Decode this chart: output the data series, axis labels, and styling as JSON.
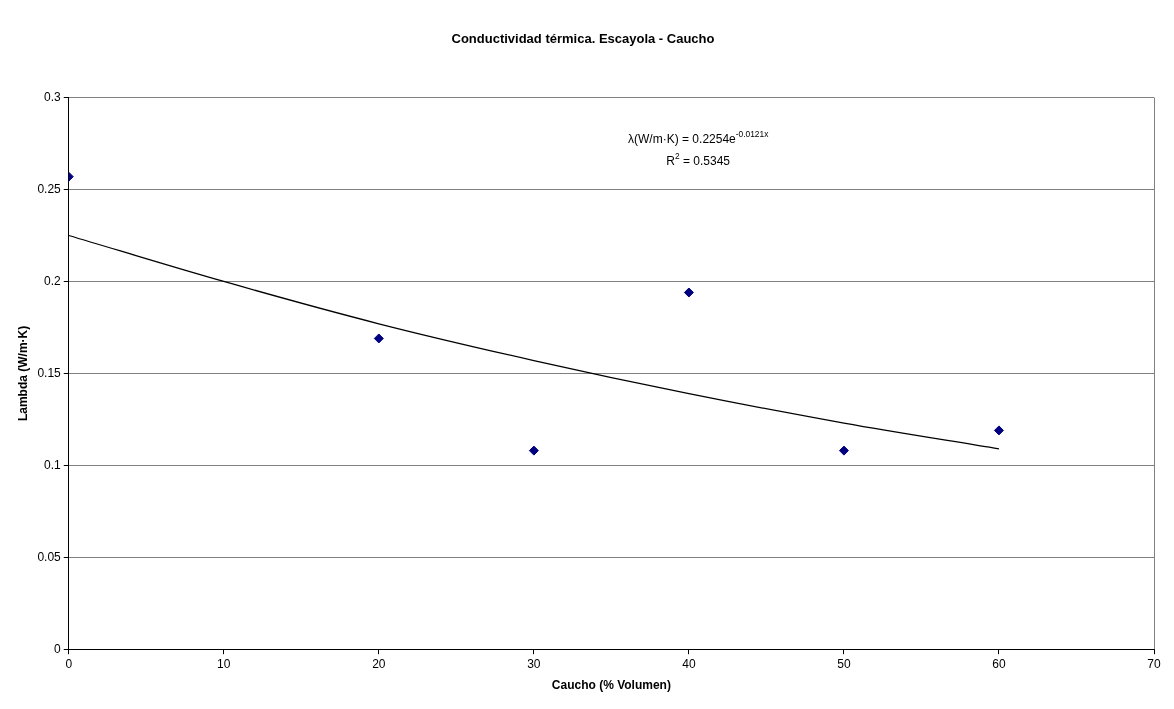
{
  "chart_data": {
    "type": "scatter",
    "title": "Conductividad térmica. Escayola - Caucho",
    "xlabel": "Caucho (% Volumen)",
    "ylabel": "Lambda (W/m·K)",
    "xlim": [
      0,
      70
    ],
    "xticks": [
      0,
      10,
      20,
      30,
      40,
      50,
      60,
      70
    ],
    "ylim": [
      0,
      0.3
    ],
    "yticks": [
      0,
      0.05,
      0.1,
      0.15,
      0.2,
      0.25,
      0.3
    ],
    "grid": "y",
    "legend": false,
    "marker": "diamond",
    "series": [
      {
        "type": "scatter",
        "color": "#000080",
        "x": [
          0,
          20,
          30,
          40,
          50,
          60
        ],
        "values": [
          0.257,
          0.169,
          0.108,
          0.194,
          0.108,
          0.119
        ]
      },
      {
        "type": "line",
        "color": "#000000",
        "marker": "none",
        "x": [
          0,
          10,
          20,
          30,
          40,
          50,
          60
        ],
        "values": [
          0.225,
          0.2,
          0.177,
          0.157,
          0.139,
          0.123,
          0.109
        ]
      }
    ],
    "annotations": [
      "λ(W/m·K) = 0.2254e$^{-0.0121x}$",
      "R$^{2}$ = 0.5345"
    ]
  }
}
